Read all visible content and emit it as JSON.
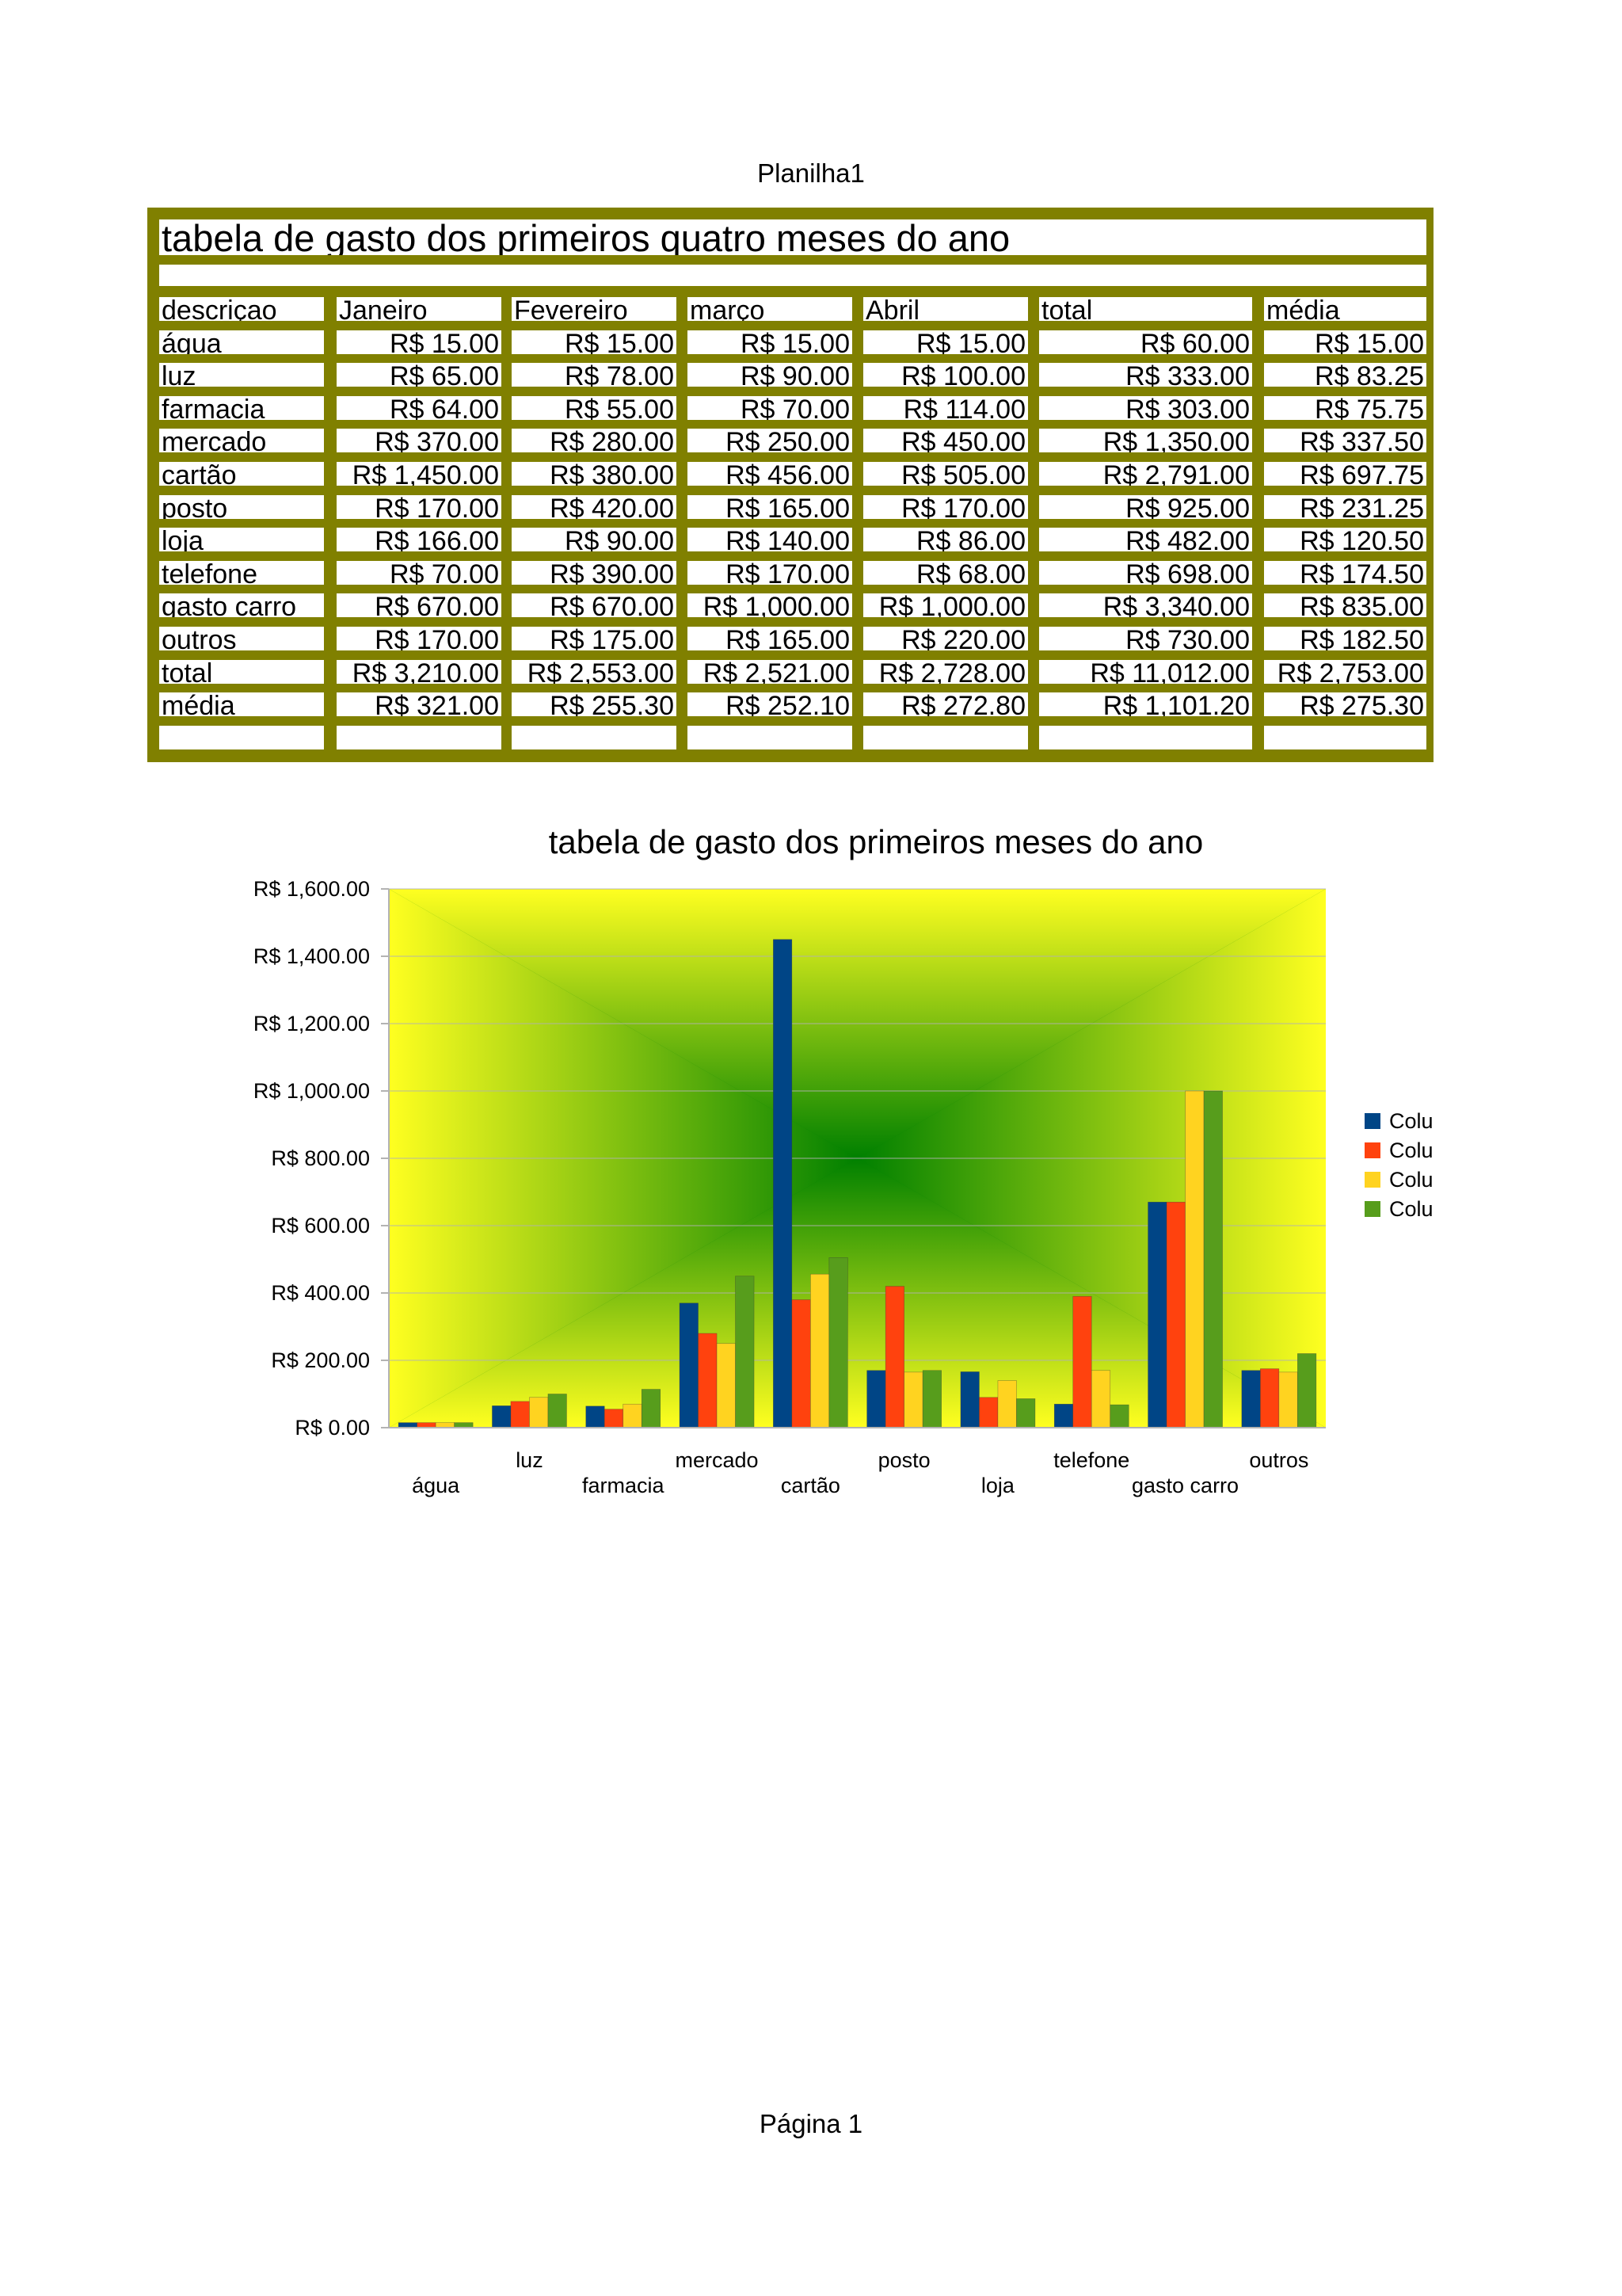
{
  "page": {
    "header": "Planilha1",
    "footer": "Página 1"
  },
  "table": {
    "title": "tabela de gasto dos primeiros quatro meses do ano",
    "headers": [
      "descriçao",
      "Janeiro",
      "Fevereiro",
      "março",
      "Abril",
      "total",
      "média"
    ],
    "rows": [
      [
        "água",
        "R$ 15.00",
        "R$ 15.00",
        "R$ 15.00",
        "R$ 15.00",
        "R$ 60.00",
        "R$ 15.00"
      ],
      [
        "luz",
        "R$ 65.00",
        "R$ 78.00",
        "R$ 90.00",
        "R$ 100.00",
        "R$ 333.00",
        "R$ 83.25"
      ],
      [
        "farmacia",
        "R$ 64.00",
        "R$ 55.00",
        "R$ 70.00",
        "R$ 114.00",
        "R$ 303.00",
        "R$ 75.75"
      ],
      [
        "mercado",
        "R$ 370.00",
        "R$ 280.00",
        "R$ 250.00",
        "R$ 450.00",
        "R$ 1,350.00",
        "R$ 337.50"
      ],
      [
        "cartão",
        "R$ 1,450.00",
        "R$ 380.00",
        "R$ 456.00",
        "R$ 505.00",
        "R$ 2,791.00",
        "R$ 697.75"
      ],
      [
        "posto",
        "R$ 170.00",
        "R$ 420.00",
        "R$ 165.00",
        "R$ 170.00",
        "R$ 925.00",
        "R$ 231.25"
      ],
      [
        "loja",
        "R$ 166.00",
        "R$ 90.00",
        "R$ 140.00",
        "R$ 86.00",
        "R$ 482.00",
        "R$ 120.50"
      ],
      [
        "telefone",
        "R$ 70.00",
        "R$ 390.00",
        "R$ 170.00",
        "R$ 68.00",
        "R$ 698.00",
        "R$ 174.50"
      ],
      [
        "gasto carro",
        "R$ 670.00",
        "R$ 670.00",
        "R$ 1,000.00",
        "R$ 1,000.00",
        "R$ 3,340.00",
        "R$ 835.00"
      ],
      [
        "outros",
        "R$ 170.00",
        "R$ 175.00",
        "R$ 165.00",
        "R$ 220.00",
        "R$ 730.00",
        "R$ 182.50"
      ],
      [
        "total",
        "R$ 3,210.00",
        "R$ 2,553.00",
        "R$ 2,521.00",
        "R$ 2,728.00",
        "R$ 11,012.00",
        "R$ 2,753.00"
      ],
      [
        "média",
        "R$ 321.00",
        "R$ 255.30",
        "R$ 252.10",
        "R$ 272.80",
        "R$ 1,101.20",
        "R$ 275.30"
      ]
    ],
    "border_color": "#808000"
  },
  "chart_data": {
    "type": "bar",
    "title": "tabela de gasto dos primeiros meses do ano",
    "categories": [
      "água",
      "luz",
      "farmacia",
      "mercado",
      "cartão",
      "posto",
      "loja",
      "telefone",
      "gasto carro",
      "outros"
    ],
    "series": [
      {
        "name": "Colu",
        "color": "#004586",
        "values": [
          15,
          65,
          64,
          370,
          1450,
          170,
          166,
          70,
          670,
          170
        ]
      },
      {
        "name": "Colu",
        "color": "#ff420e",
        "values": [
          15,
          78,
          55,
          280,
          380,
          420,
          90,
          390,
          670,
          175
        ]
      },
      {
        "name": "Colu",
        "color": "#ffd320",
        "values": [
          15,
          90,
          70,
          250,
          456,
          165,
          140,
          170,
          1000,
          165
        ]
      },
      {
        "name": "Colu",
        "color": "#579d1c",
        "values": [
          15,
          100,
          114,
          450,
          505,
          170,
          86,
          68,
          1000,
          220
        ]
      }
    ],
    "ylim": [
      0,
      1600
    ],
    "yticks": [
      "R$ 0.00",
      "R$ 200.00",
      "R$ 400.00",
      "R$ 600.00",
      "R$ 800.00",
      "R$ 1,000.00",
      "R$ 1,200.00",
      "R$ 1,400.00",
      "R$ 1,600.00"
    ],
    "ytick_values": [
      0,
      200,
      400,
      600,
      800,
      1000,
      1200,
      1400,
      1600
    ],
    "grid": true,
    "legend_position": "right",
    "background_colors": {
      "edge": "#ffff20",
      "center": "#008000"
    }
  }
}
